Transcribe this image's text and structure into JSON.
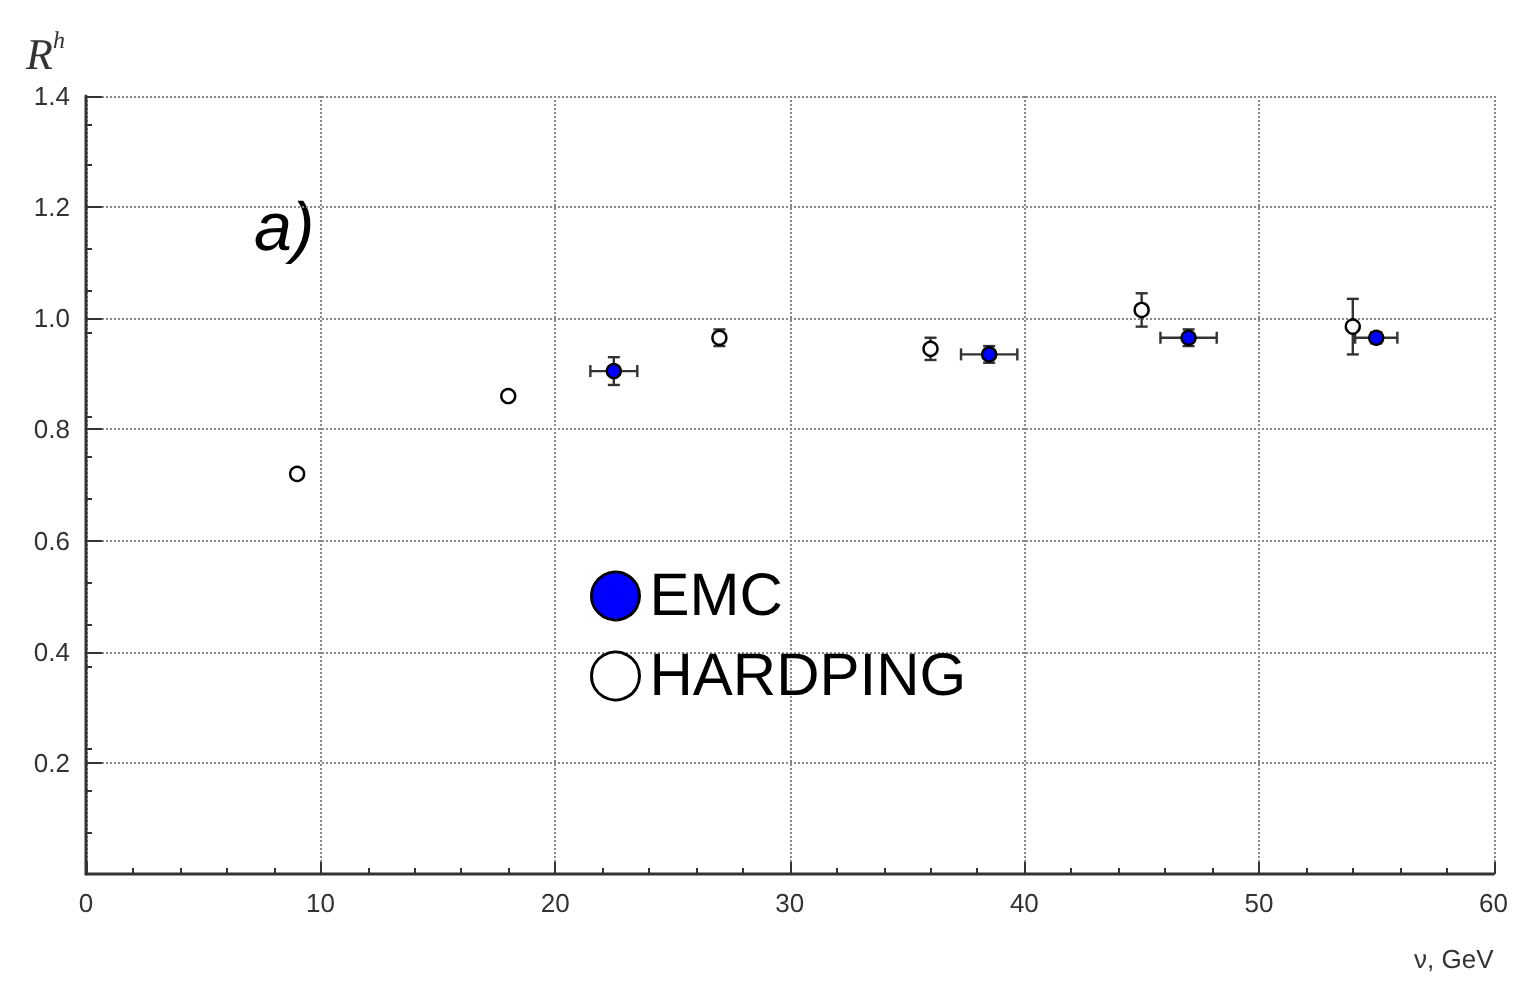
{
  "chart_data": {
    "type": "scatter",
    "xlabel": "ν, GeV",
    "ylabel": "R$^{h}$",
    "annotations": [
      "a)"
    ],
    "xlim": [
      0,
      60
    ],
    "xticks": [
      0,
      10,
      20,
      30,
      40,
      50,
      60
    ],
    "ylim": [
      0,
      1.4
    ],
    "yticks": [
      0.2,
      0.4,
      0.6,
      0.8,
      {
        "value": 1,
        "label": "1.0"
      },
      1.2,
      1.4
    ],
    "grid": true,
    "legend": "center",
    "marker": "circle",
    "series": [
      {
        "name": "EMC",
        "color": "#0000ff",
        "x": [
          22.5,
          38.5,
          47,
          55
        ],
        "values": [
          0.905,
          0.935,
          0.965,
          0.965
        ],
        "errors": [
          0.025,
          0.015,
          0.015,
          0.01
        ],
        "xerrors": [
          1,
          1.2,
          1.2,
          0.9
        ]
      },
      {
        "name": "HARDPING",
        "color": "#ffffff",
        "x": [
          9,
          18,
          27,
          36,
          45,
          54
        ],
        "values": [
          0.72,
          0.86,
          0.965,
          0.945,
          1.015,
          0.985
        ],
        "errors": [
          null,
          null,
          0.015,
          0.02,
          0.03,
          0.05
        ]
      }
    ]
  }
}
